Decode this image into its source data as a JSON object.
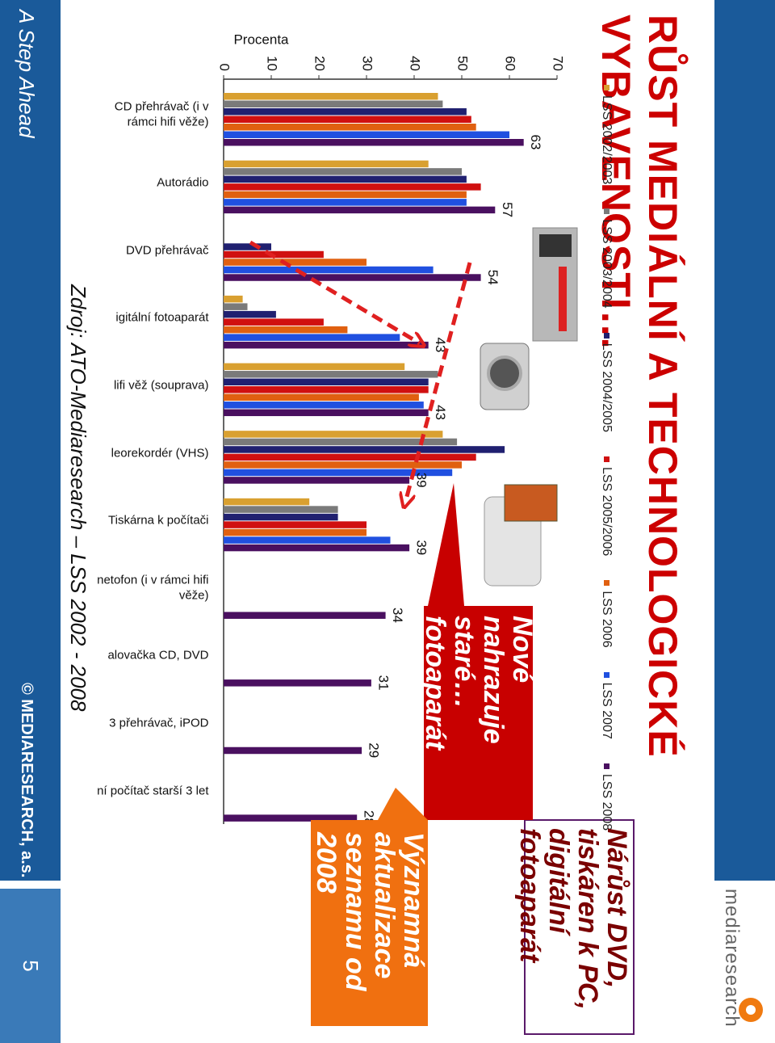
{
  "chart_data": {
    "type": "bar",
    "title": "RŮST MEDIÁLNÍ A TECHNOLOGICKÉ VYBAVENOSTI…",
    "ylabel": "Procenta",
    "ylim": [
      0,
      70
    ],
    "yticks": [
      0,
      10,
      20,
      30,
      40,
      50,
      60,
      70
    ],
    "grid": false,
    "legend": "top",
    "categories": [
      "CD přehrávač (i v rámci hifi věže)",
      "Autorádio",
      "DVD přehrávač",
      "igitální fotoaparát",
      "lifi věž (souprava)",
      "leorekordér (VHS)",
      "Tiskárna k počítači",
      "netofon (i v rámci hifi věže)",
      "alovačka CD, DVD",
      "3 přehrávač, iPOD",
      "ní počítač starší 3 let"
    ],
    "series": [
      {
        "name": "LSS 2002/2003",
        "color": "#d9a030",
        "values": [
          45,
          43,
          null,
          4,
          38,
          46,
          18,
          null,
          null,
          null,
          null
        ]
      },
      {
        "name": "LSS 2003/2004",
        "color": "#7a7a7a",
        "values": [
          46,
          50,
          null,
          5,
          45,
          49,
          24,
          null,
          null,
          null,
          null
        ]
      },
      {
        "name": "LSS 2004/2005",
        "color": "#202070",
        "values": [
          51,
          51,
          10,
          11,
          43,
          59,
          24,
          null,
          null,
          null,
          null
        ]
      },
      {
        "name": "LSS 2005/2006",
        "color": "#d01010",
        "values": [
          52,
          54,
          21,
          21,
          43,
          53,
          30,
          null,
          null,
          null,
          null
        ]
      },
      {
        "name": "LSS 2006",
        "color": "#e06010",
        "values": [
          53,
          51,
          30,
          26,
          41,
          50,
          30,
          null,
          null,
          null,
          null
        ]
      },
      {
        "name": "LSS 2007",
        "color": "#2050e0",
        "values": [
          60,
          51,
          44,
          37,
          42,
          48,
          35,
          null,
          null,
          null,
          null
        ]
      },
      {
        "name": "LSS 2008",
        "color": "#4a1060",
        "show_values": true,
        "values": [
          63,
          57,
          54,
          43,
          43,
          39,
          39,
          34,
          31,
          29,
          28
        ]
      }
    ],
    "annotations": [
      "Nárůst DVD, tiskáren k PC, digitální fotoaparát",
      "Nové nahrazuje staré… fotoaparát",
      "Významná aktualizace seznamu od 2008"
    ]
  },
  "header": {
    "logo": "mediaresearch"
  },
  "source": "Zdroj: ATO-Mediaresearch – LSS 2002 - 2008",
  "footer": {
    "tagline": "A Step Ahead",
    "copyright": "© MEDIARESEARCH, a.s.",
    "page": 5
  }
}
